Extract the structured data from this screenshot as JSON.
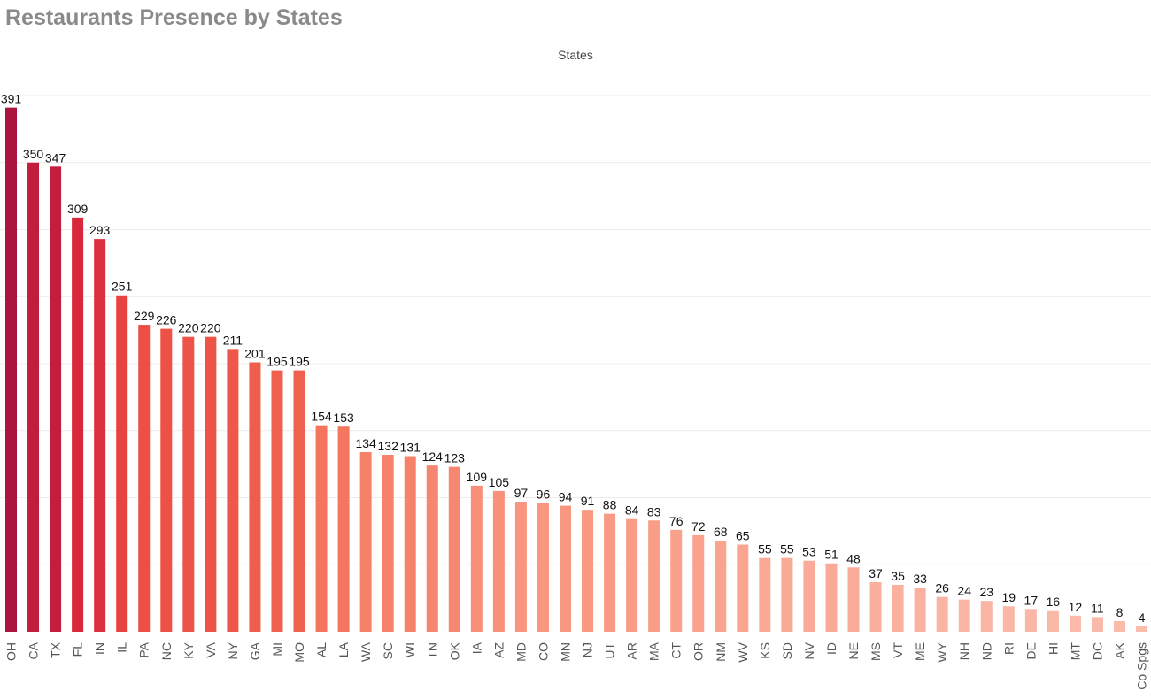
{
  "chart_data": {
    "type": "bar",
    "title": "Restaurants Presence by States",
    "legend_title": "States",
    "xlabel": "",
    "ylabel": "",
    "grid": true,
    "ylim": [
      0,
      400
    ],
    "categories": [
      "OH",
      "CA",
      "TX",
      "FL",
      "IN",
      "IL",
      "PA",
      "NC",
      "KY",
      "VA",
      "NY",
      "GA",
      "MI",
      "MO",
      "AL",
      "LA",
      "WA",
      "SC",
      "WI",
      "TN",
      "OK",
      "IA",
      "AZ",
      "MD",
      "CO",
      "MN",
      "NJ",
      "UT",
      "AR",
      "MA",
      "CT",
      "OR",
      "NM",
      "WV",
      "KS",
      "SD",
      "NV",
      "ID",
      "NE",
      "MS",
      "VT",
      "ME",
      "WY",
      "NH",
      "ND",
      "RI",
      "DE",
      "HI",
      "MT",
      "DC",
      "AK",
      "Co Spgs"
    ],
    "values": [
      391,
      350,
      347,
      309,
      293,
      251,
      229,
      226,
      220,
      220,
      211,
      201,
      195,
      195,
      154,
      153,
      134,
      132,
      131,
      124,
      123,
      109,
      105,
      97,
      96,
      94,
      91,
      88,
      84,
      83,
      76,
      72,
      68,
      65,
      55,
      55,
      53,
      51,
      48,
      37,
      35,
      33,
      26,
      24,
      23,
      19,
      17,
      16,
      12,
      11,
      8,
      4
    ]
  }
}
